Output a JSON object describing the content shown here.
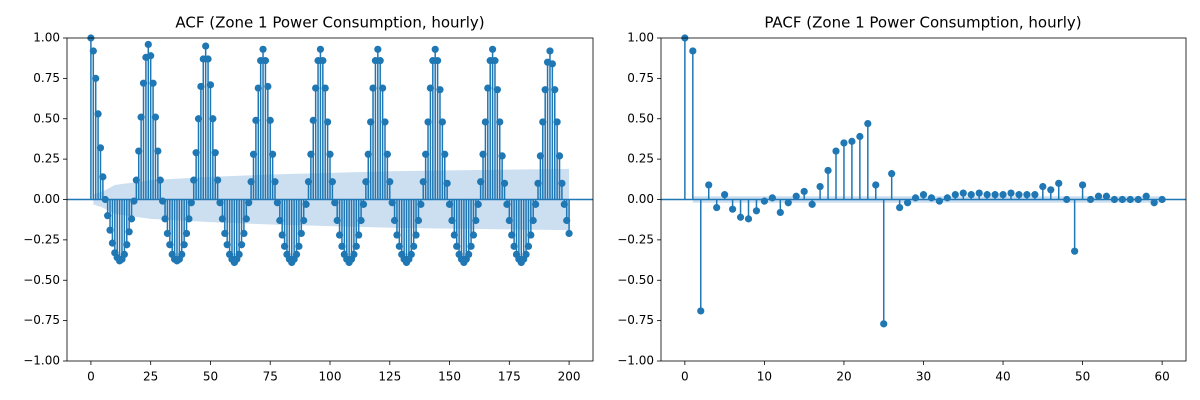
{
  "chart_data": [
    {
      "type": "stem",
      "title": "ACF (Zone 1 Power Consumption, hourly)",
      "color": "#1f77b4",
      "band_color": "#c6dbef",
      "xlim": [
        -10,
        210
      ],
      "xticks": [
        0,
        25,
        50,
        75,
        100,
        125,
        150,
        175,
        200
      ],
      "ylim": [
        -1,
        1
      ],
      "yticks": [
        {
          "value": -1,
          "label": "−1.00"
        },
        {
          "value": -0.75,
          "label": "−0.75"
        },
        {
          "value": -0.5,
          "label": "−0.50"
        },
        {
          "value": -0.25,
          "label": "−0.25"
        },
        {
          "value": 0,
          "label": "0.00"
        },
        {
          "value": 0.25,
          "label": "0.25"
        },
        {
          "value": 0.5,
          "label": "0.50"
        },
        {
          "value": 0.75,
          "label": "0.75"
        },
        {
          "value": 1,
          "label": "1.00"
        }
      ],
      "x": [
        0,
        1,
        2,
        3,
        4,
        5,
        6,
        7,
        8,
        9,
        10,
        11,
        12,
        13,
        14,
        15,
        16,
        17,
        18,
        19,
        20,
        21,
        22,
        23,
        24,
        25,
        26,
        27,
        28,
        29,
        30,
        31,
        32,
        33,
        34,
        35,
        36,
        37,
        38,
        39,
        40,
        41,
        42,
        43,
        44,
        45,
        46,
        47,
        48,
        49,
        50,
        51,
        52,
        53,
        54,
        55,
        56,
        57,
        58,
        59,
        60,
        61,
        62,
        63,
        64,
        65,
        66,
        67,
        68,
        69,
        70,
        71,
        72,
        73,
        74,
        75,
        76,
        77,
        78,
        79,
        80,
        81,
        82,
        83,
        84,
        85,
        86,
        87,
        88,
        89,
        90,
        91,
        92,
        93,
        94,
        95,
        96,
        97,
        98,
        99,
        100,
        101,
        102,
        103,
        104,
        105,
        106,
        107,
        108,
        109,
        110,
        111,
        112,
        113,
        114,
        115,
        116,
        117,
        118,
        119,
        120,
        121,
        122,
        123,
        124,
        125,
        126,
        127,
        128,
        129,
        130,
        131,
        132,
        133,
        134,
        135,
        136,
        137,
        138,
        139,
        140,
        141,
        142,
        143,
        144,
        145,
        146,
        147,
        148,
        149,
        150,
        151,
        152,
        153,
        154,
        155,
        156,
        157,
        158,
        159,
        160,
        161,
        162,
        163,
        164,
        165,
        166,
        167,
        168,
        169,
        170,
        171,
        172,
        173,
        174,
        175,
        176,
        177,
        178,
        179,
        180,
        181,
        182,
        183,
        184,
        185,
        186,
        187,
        188,
        189,
        190,
        191,
        192,
        193,
        194,
        195,
        196,
        197,
        198,
        199,
        200
      ],
      "values": [
        1.0,
        0.92,
        0.75,
        0.53,
        0.32,
        0.14,
        0.0,
        -0.1,
        -0.19,
        -0.27,
        -0.33,
        -0.36,
        -0.38,
        -0.37,
        -0.34,
        -0.28,
        -0.2,
        -0.12,
        -0.01,
        0.12,
        0.3,
        0.51,
        0.72,
        0.88,
        0.96,
        0.89,
        0.72,
        0.51,
        0.3,
        0.12,
        -0.01,
        -0.12,
        -0.21,
        -0.28,
        -0.34,
        -0.37,
        -0.38,
        -0.37,
        -0.34,
        -0.28,
        -0.21,
        -0.12,
        -0.02,
        0.12,
        0.29,
        0.5,
        0.7,
        0.87,
        0.95,
        0.87,
        0.71,
        0.5,
        0.29,
        0.12,
        -0.02,
        -0.12,
        -0.21,
        -0.28,
        -0.34,
        -0.37,
        -0.39,
        -0.37,
        -0.34,
        -0.28,
        -0.21,
        -0.12,
        -0.02,
        0.11,
        0.28,
        0.49,
        0.69,
        0.86,
        0.93,
        0.86,
        0.7,
        0.49,
        0.28,
        0.11,
        -0.02,
        -0.13,
        -0.22,
        -0.29,
        -0.34,
        -0.37,
        -0.39,
        -0.37,
        -0.34,
        -0.29,
        -0.21,
        -0.13,
        -0.03,
        0.11,
        0.28,
        0.49,
        0.69,
        0.86,
        0.93,
        0.86,
        0.69,
        0.48,
        0.28,
        0.11,
        -0.02,
        -0.13,
        -0.22,
        -0.29,
        -0.34,
        -0.37,
        -0.39,
        -0.37,
        -0.34,
        -0.29,
        -0.22,
        -0.13,
        -0.03,
        0.11,
        0.28,
        0.48,
        0.69,
        0.86,
        0.93,
        0.86,
        0.69,
        0.48,
        0.28,
        0.11,
        -0.02,
        -0.13,
        -0.22,
        -0.29,
        -0.34,
        -0.37,
        -0.39,
        -0.37,
        -0.34,
        -0.29,
        -0.22,
        -0.13,
        -0.03,
        0.11,
        0.28,
        0.48,
        0.69,
        0.86,
        0.93,
        0.86,
        0.68,
        0.48,
        0.28,
        0.1,
        -0.03,
        -0.13,
        -0.22,
        -0.29,
        -0.34,
        -0.37,
        -0.39,
        -0.37,
        -0.34,
        -0.29,
        -0.22,
        -0.13,
        -0.03,
        0.11,
        0.28,
        0.48,
        0.69,
        0.86,
        0.93,
        0.86,
        0.68,
        0.48,
        0.27,
        0.1,
        -0.03,
        -0.13,
        -0.22,
        -0.29,
        -0.34,
        -0.37,
        -0.39,
        -0.37,
        -0.34,
        -0.29,
        -0.22,
        -0.13,
        -0.03,
        0.1,
        0.27,
        0.48,
        0.68,
        0.85,
        0.92,
        0.84,
        0.68,
        0.48,
        0.27,
        0.1,
        -0.03,
        -0.13,
        -0.21
      ],
      "band_x": [
        1,
        5,
        10,
        25,
        50,
        75,
        100,
        125,
        150,
        175,
        200
      ],
      "band_halfwidth": [
        0.03,
        0.05,
        0.09,
        0.12,
        0.14,
        0.155,
        0.165,
        0.175,
        0.18,
        0.185,
        0.19
      ]
    },
    {
      "type": "stem",
      "title": "PACF (Zone 1 Power Consumption, hourly)",
      "color": "#1f77b4",
      "band_color": "#c6dbef",
      "xlim": [
        -3,
        63
      ],
      "xticks": [
        0,
        10,
        20,
        30,
        40,
        50,
        60
      ],
      "ylim": [
        -1,
        1
      ],
      "yticks": [
        {
          "value": -1,
          "label": "−1.00"
        },
        {
          "value": -0.75,
          "label": "−0.75"
        },
        {
          "value": -0.5,
          "label": "−0.50"
        },
        {
          "value": -0.25,
          "label": "−0.25"
        },
        {
          "value": 0,
          "label": "0.00"
        },
        {
          "value": 0.25,
          "label": "0.25"
        },
        {
          "value": 0.5,
          "label": "0.50"
        },
        {
          "value": 0.75,
          "label": "0.75"
        },
        {
          "value": 1,
          "label": "1.00"
        }
      ],
      "x": [
        0,
        1,
        2,
        3,
        4,
        5,
        6,
        7,
        8,
        9,
        10,
        11,
        12,
        13,
        14,
        15,
        16,
        17,
        18,
        19,
        20,
        21,
        22,
        23,
        24,
        25,
        26,
        27,
        28,
        29,
        30,
        31,
        32,
        33,
        34,
        35,
        36,
        37,
        38,
        39,
        40,
        41,
        42,
        43,
        44,
        45,
        46,
        47,
        48,
        49,
        50,
        51,
        52,
        53,
        54,
        55,
        56,
        57,
        58,
        59,
        60
      ],
      "values": [
        1.0,
        0.92,
        -0.69,
        0.09,
        -0.05,
        0.03,
        -0.06,
        -0.11,
        -0.12,
        -0.07,
        -0.01,
        0.01,
        -0.08,
        -0.02,
        0.02,
        0.05,
        -0.03,
        0.08,
        0.18,
        0.3,
        0.35,
        0.36,
        0.39,
        0.47,
        0.09,
        -0.77,
        0.16,
        -0.05,
        -0.02,
        0.01,
        0.03,
        0.01,
        -0.01,
        0.01,
        0.03,
        0.04,
        0.03,
        0.04,
        0.03,
        0.03,
        0.03,
        0.04,
        0.03,
        0.03,
        0.03,
        0.08,
        0.06,
        0.1,
        0.0,
        -0.32,
        0.09,
        0.0,
        0.02,
        0.02,
        0.0,
        0.0,
        0.0,
        0.0,
        0.02,
        -0.02,
        0.0
      ],
      "band_x": [
        1,
        60
      ],
      "band_halfwidth": [
        0.02,
        0.02
      ]
    }
  ]
}
